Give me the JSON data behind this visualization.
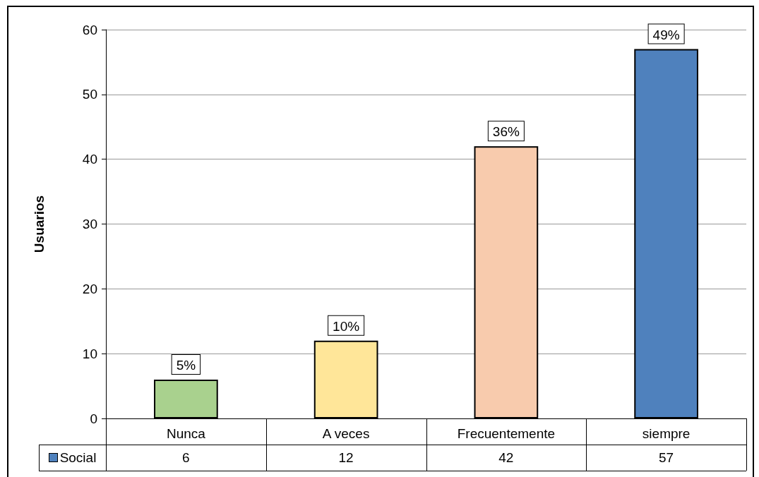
{
  "chart_data": {
    "type": "bar",
    "ylabel": "Usuarios",
    "categories": [
      "Nunca",
      "A veces",
      "Frecuentemente",
      "siempre"
    ],
    "series": [
      {
        "name": "Social",
        "color": "#4f81bd",
        "colors": [
          "#a9d18e",
          "#ffe699",
          "#f8cbad",
          "#4f81bd"
        ],
        "values": [
          6,
          12,
          42,
          57
        ],
        "value_labels": [
          "6",
          "12",
          "42",
          "57"
        ]
      }
    ],
    "annotations": [
      {
        "text": "5%",
        "x": "Nunca",
        "y": 6
      },
      {
        "text": "10%",
        "x": "A veces",
        "y": 12
      },
      {
        "text": "36%",
        "x": "Frecuentemente",
        "y": 42
      },
      {
        "text": "49%",
        "x": "siempre",
        "y": 57
      }
    ],
    "ylim": [
      0,
      60
    ],
    "yticks": [
      0,
      10,
      20,
      30,
      40,
      50,
      60
    ],
    "grid": "y",
    "legend": "bottom left"
  }
}
